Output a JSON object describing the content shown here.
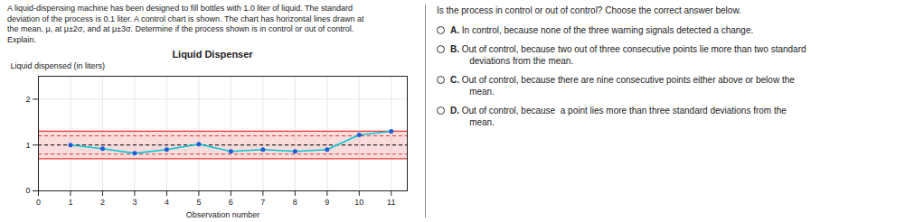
{
  "chart_data": {
    "type": "line",
    "title": "Liquid Dispenser",
    "xlabel": "Observation number",
    "ylabel": "Liquid dispensed (in liters)",
    "x": [
      1,
      2,
      3,
      4,
      5,
      6,
      7,
      8,
      9,
      10,
      11
    ],
    "series": [
      {
        "type": "line",
        "color": "#00c8d4",
        "values": [
          1.0,
          0.92,
          0.82,
          0.9,
          1.02,
          0.86,
          0.9,
          0.86,
          0.9,
          1.22,
          1.3
        ]
      },
      {
        "type": "scatter",
        "color": "#1a5cd6",
        "marker": "circle",
        "values": [
          1.0,
          0.92,
          0.82,
          0.9,
          1.02,
          0.86,
          0.9,
          0.86,
          0.9,
          1.22,
          1.3
        ]
      }
    ],
    "band": {
      "y1": 0.7,
      "y2": 1.3,
      "color": "#f08080"
    },
    "reference_lines": [
      {
        "value": 1.3,
        "color": "#e53935",
        "line_style": "solid"
      },
      {
        "value": 0.7,
        "color": "#e53935",
        "line_style": "solid"
      },
      {
        "value": 1.2,
        "color": "#e53935",
        "line_style": "dashed"
      },
      {
        "value": 0.8,
        "color": "#e53935",
        "line_style": "dashed"
      },
      {
        "value": 1.0,
        "color": "#000000",
        "line_style": "dashed"
      }
    ],
    "xlim": [
      0,
      11.5
    ],
    "ylim": [
      0,
      2.5
    ],
    "xticks": [
      0,
      1,
      2,
      3,
      4,
      5,
      6,
      7,
      8,
      9,
      10,
      11
    ],
    "yticks": [
      0,
      1,
      2
    ],
    "grid": true,
    "description": "A liquid-dispensing machine has been designed to fill bottles with 1.0 liter of liquid. The standard\ndeviation of the process is 0.1 liter. A control chart is shown. The chart has horizontal lines drawn at\nthe mean, μ, at μ±2σ, and at μ±3σ. Determine if the process shown is in control or out of control.\nExplain.",
    "question": "Is the process in control or out of control? Choose the correct answer below.",
    "choices": [
      {
        "label": "A.",
        "text": " In control, because none of the three warning signals detected a change."
      },
      {
        "label": "B.",
        "text": " Out of control, because two out of three consecutive points lie more than two standard\n    deviations from the mean."
      },
      {
        "label": "C.",
        "text": " Out of control, because there are nine consecutive points either above or below the\n    mean."
      },
      {
        "label": "D.",
        "text": " Out of control, because  a point lies more than three standard deviations from the\n    mean."
      }
    ]
  }
}
